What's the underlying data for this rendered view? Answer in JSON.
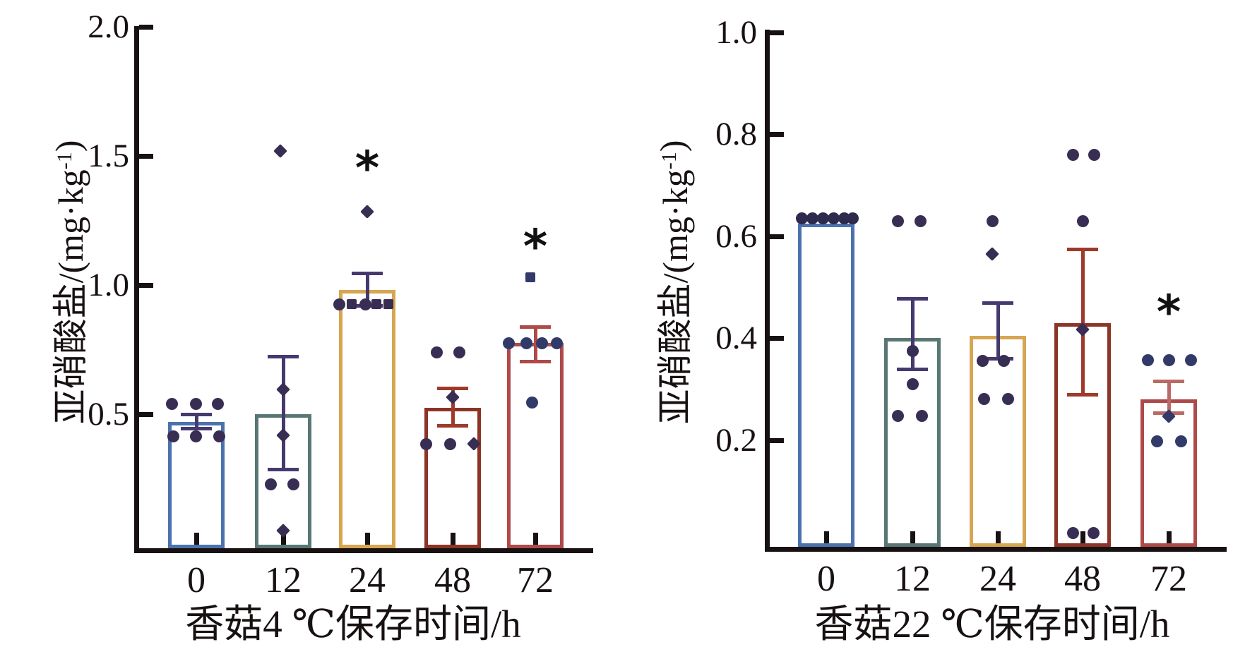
{
  "figure": {
    "background": "#ffffff",
    "axis_color": "#181112",
    "description_colors": {
      "bar_0h": "#4c72ae",
      "bar_12h": "#587774",
      "bar_24h": "#d7a652",
      "bar_48h": "#8c3425",
      "bar_72h": "#ae4a49",
      "error_purple": "#46396f",
      "point_dark": "#382e54",
      "point_navy": "#323a6a"
    }
  },
  "chart_data": [
    {
      "id": "4c",
      "type": "bar",
      "title": "",
      "xlabel": "香菇4 ℃保存时间/h",
      "ylabel": "亚硝酸盐/(mg·kg⁻¹)",
      "ylabel_prefix": "亚硝酸盐/(mg·kg",
      "ylabel_sup": "-1",
      "ylabel_suffix": ")",
      "categories": [
        "0",
        "12",
        "24",
        "48",
        "72"
      ],
      "ylim": [
        0,
        2.0
      ],
      "grid": false,
      "legend": "none",
      "point_color": "#382e54",
      "yticks": [
        {
          "v": 0.5,
          "label": "0.5"
        },
        {
          "v": 1.0,
          "label": "1.0"
        },
        {
          "v": 1.5,
          "label": "1.5"
        },
        {
          "v": 2.0,
          "label": "2.0"
        }
      ],
      "bars": [
        {
          "category": "0",
          "mean": 0.47,
          "err": [
            0.445,
            0.5
          ],
          "color": "#4c72ae",
          "err_color": "#46396f",
          "points": [
            {
              "v": 0.54,
              "dx": -35
            },
            {
              "v": 0.54,
              "dx": -1
            },
            {
              "v": 0.54,
              "dx": 30
            },
            {
              "v": 0.415,
              "dx": -33
            },
            {
              "v": 0.415,
              "dx": -1
            },
            {
              "v": 0.415,
              "dx": 32
            }
          ]
        },
        {
          "category": "12",
          "mean": 0.5,
          "err": [
            0.287,
            0.724
          ],
          "color": "#587774",
          "err_color": "#46396f",
          "points": [
            {
              "v": 1.52,
              "dx": -4,
              "shape": "diamond"
            },
            {
              "v": 0.596,
              "dx": 0,
              "shape": "diamond"
            },
            {
              "v": 0.418,
              "dx": 0,
              "shape": "diamond"
            },
            {
              "v": 0.227,
              "dx": -18
            },
            {
              "v": 0.227,
              "dx": 14
            },
            {
              "v": 0.05,
              "dx": 0,
              "shape": "diamond"
            }
          ]
        },
        {
          "category": "24",
          "mean": 0.98,
          "err": [
            0.92,
            1.047
          ],
          "color": "#d7a652",
          "err_color": "#46396f",
          "sig": "*",
          "sig_v": 1.45,
          "points": [
            {
              "v": 1.285,
              "dx": 0,
              "shape": "diamond"
            },
            {
              "v": 0.925,
              "dx": -40
            },
            {
              "v": 0.925,
              "dx": -22,
              "shape": "square"
            },
            {
              "v": 0.925,
              "dx": -3
            },
            {
              "v": 0.925,
              "dx": 13,
              "shape": "square"
            },
            {
              "v": 0.925,
              "dx": 30,
              "shape": "square"
            }
          ]
        },
        {
          "category": "48",
          "mean": 0.525,
          "err": [
            0.455,
            0.6
          ],
          "color": "#8c3425",
          "err_color": "#9e3a2c",
          "points": [
            {
              "v": 0.74,
              "dx": -23
            },
            {
              "v": 0.74,
              "dx": 9
            },
            {
              "v": 0.565,
              "dx": 0,
              "shape": "diamond"
            },
            {
              "v": 0.385,
              "dx": -38
            },
            {
              "v": 0.385,
              "dx": -4
            },
            {
              "v": 0.385,
              "dx": 30,
              "shape": "diamond"
            }
          ]
        },
        {
          "category": "72",
          "mean": 0.775,
          "err": [
            0.705,
            0.84
          ],
          "color": "#ae4a49",
          "err_color": "#ae4a49",
          "sig": "*",
          "sig_v": 1.148,
          "point_color": "#323a6a",
          "points": [
            {
              "v": 1.03,
              "dx": -7,
              "shape": "square"
            },
            {
              "v": 0.775,
              "dx": -38
            },
            {
              "v": 0.775,
              "dx": -13
            },
            {
              "v": 0.775,
              "dx": 9
            },
            {
              "v": 0.775,
              "dx": 30
            },
            {
              "v": 0.545,
              "dx": -5
            }
          ]
        }
      ]
    },
    {
      "id": "22c",
      "type": "bar",
      "title": "",
      "xlabel": "香菇22 ℃保存时间/h",
      "ylabel": "亚硝酸盐/(mg·kg⁻¹)",
      "ylabel_prefix": "亚硝酸盐/(mg·kg",
      "ylabel_sup": "-1",
      "ylabel_suffix": ")",
      "categories": [
        "0",
        "12",
        "24",
        "48",
        "72"
      ],
      "ylim": [
        0,
        1.0
      ],
      "grid": false,
      "legend": "none",
      "point_color": "#382e54",
      "yticks": [
        {
          "v": 0.2,
          "label": "0.2"
        },
        {
          "v": 0.4,
          "label": "0.4"
        },
        {
          "v": 0.6,
          "label": "0.6"
        },
        {
          "v": 0.8,
          "label": "0.8"
        },
        {
          "v": 1.0,
          "label": "1.0"
        }
      ],
      "bars": [
        {
          "category": "0",
          "mean": 0.625,
          "err": null,
          "color": "#4c72ae",
          "err_color": "#46396f",
          "point_color": "#2e2a4e",
          "points": [
            {
              "v": 0.635,
              "dx": -35
            },
            {
              "v": 0.635,
              "dx": -20
            },
            {
              "v": 0.635,
              "dx": -5
            },
            {
              "v": 0.635,
              "dx": 10
            },
            {
              "v": 0.635,
              "dx": 25
            },
            {
              "v": 0.635,
              "dx": 37
            }
          ]
        },
        {
          "category": "12",
          "mean": 0.4,
          "err": [
            0.34,
            0.478
          ],
          "color": "#587774",
          "err_color": "#46396f",
          "points": [
            {
              "v": 0.63,
              "dx": -21
            },
            {
              "v": 0.63,
              "dx": 11
            },
            {
              "v": 0.375,
              "dx": 0
            },
            {
              "v": 0.309,
              "dx": 0
            },
            {
              "v": 0.247,
              "dx": -21
            },
            {
              "v": 0.247,
              "dx": 13
            }
          ]
        },
        {
          "category": "24",
          "mean": 0.405,
          "err": [
            0.36,
            0.47
          ],
          "color": "#d7a652",
          "err_color": "#46396f",
          "points": [
            {
              "v": 0.63,
              "dx": -8
            },
            {
              "v": 0.565,
              "dx": -8,
              "shape": "diamond"
            },
            {
              "v": 0.355,
              "dx": -22
            },
            {
              "v": 0.355,
              "dx": 8
            },
            {
              "v": 0.28,
              "dx": -20
            },
            {
              "v": 0.28,
              "dx": 14
            }
          ]
        },
        {
          "category": "48",
          "mean": 0.43,
          "err": [
            0.29,
            0.575
          ],
          "color": "#8c3425",
          "err_color": "#9e3a2c",
          "points": [
            {
              "v": 0.76,
              "dx": -14
            },
            {
              "v": 0.76,
              "dx": 16
            },
            {
              "v": 0.63,
              "dx": 0
            },
            {
              "v": 0.417,
              "dx": 0,
              "shape": "diamond"
            },
            {
              "v": 0.018,
              "dx": -14
            },
            {
              "v": 0.018,
              "dx": 15
            }
          ]
        },
        {
          "category": "72",
          "mean": 0.28,
          "err": [
            0.253,
            0.316
          ],
          "color": "#ae4a49",
          "err_color": "#b96a64",
          "sig": "*",
          "sig_v": 0.45,
          "point_color": "#323a6a",
          "points": [
            {
              "v": 0.357,
              "dx": -30
            },
            {
              "v": 0.357,
              "dx": 0
            },
            {
              "v": 0.357,
              "dx": 31
            },
            {
              "v": 0.247,
              "dx": 0,
              "shape": "diamond"
            },
            {
              "v": 0.198,
              "dx": -17
            },
            {
              "v": 0.198,
              "dx": 17
            }
          ]
        }
      ]
    }
  ]
}
